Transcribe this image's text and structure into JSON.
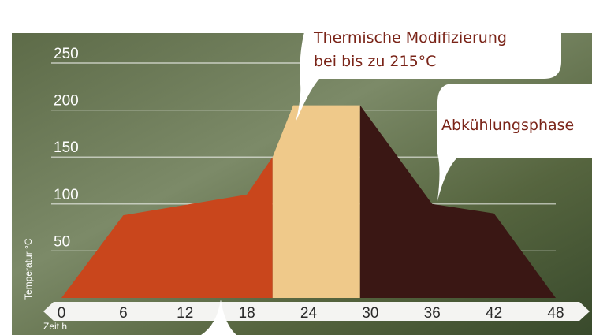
{
  "chart_data": {
    "type": "area",
    "y_label": "Temperatur °C",
    "x_label": "Zeit h",
    "callouts": [
      "Thermische Modifizierung",
      "bei bis zu 215°C",
      "Abkühlungsphase"
    ],
    "series": [
      {
        "color": "#c9461c",
        "x": [
          0,
          6,
          18,
          20.5
        ],
        "values": [
          0,
          88,
          110,
          150
        ]
      },
      {
        "color": "#efc98a",
        "x": [
          20.5,
          22.5,
          29
        ],
        "values": [
          150,
          205,
          205
        ]
      },
      {
        "color": "#3a1714",
        "x": [
          29,
          36,
          42,
          48
        ],
        "values": [
          205,
          100,
          90,
          0
        ]
      }
    ],
    "xlim": [
      0,
      48
    ],
    "xticks": [
      0,
      6,
      12,
      18,
      24,
      30,
      36,
      42,
      48
    ],
    "ylim": [
      0,
      250
    ],
    "yticks": [
      50,
      100,
      150,
      200,
      250
    ],
    "grid": true
  }
}
